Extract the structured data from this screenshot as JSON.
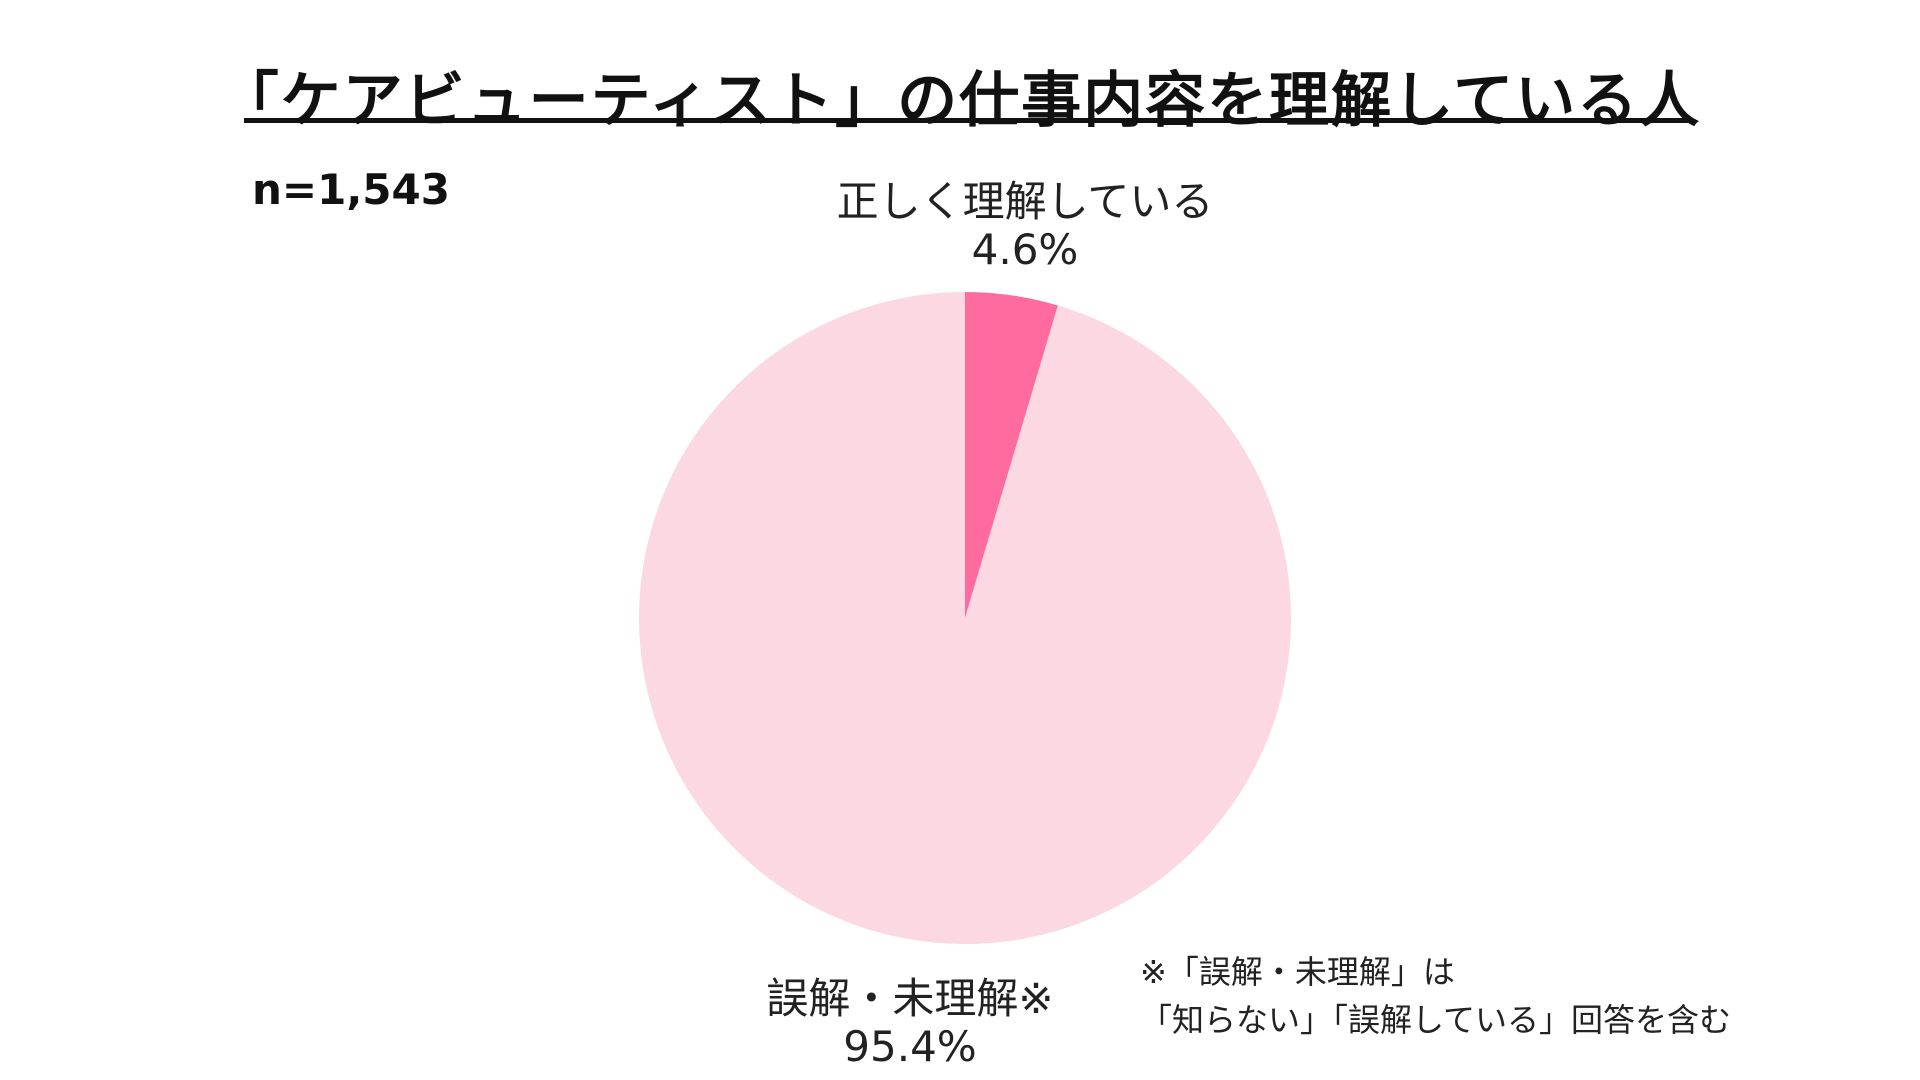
{
  "chart_data": {
    "type": "pie",
    "title": "「ケアビューティスト」の仕事内容を理解している人",
    "sample_size": "n=1,543",
    "slices": [
      {
        "label": "正しく理解している",
        "value": 4.6,
        "value_label": "4.6%",
        "color": "#ff6b9e"
      },
      {
        "label": "誤解・未理解※",
        "value": 95.4,
        "value_label": "95.4%",
        "color": "#fcd8e3"
      }
    ],
    "start_angle": "12 o'clock",
    "direction": "clockwise",
    "footnote": [
      "※「誤解・未理解」は",
      "「知らない」「誤解している」回答を含む"
    ]
  }
}
